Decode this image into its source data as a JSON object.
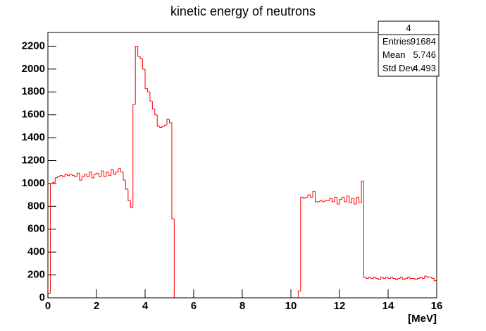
{
  "chart_data": {
    "type": "histogram",
    "title": "kinetic energy of neutrons",
    "x_label": "[MeV]",
    "color": "#ff0000",
    "bins": [
      0,
      0.1,
      0.2,
      0.3,
      0.4,
      0.5,
      0.6,
      0.7,
      0.8,
      0.9,
      1,
      1.1,
      1.2,
      1.3,
      1.4,
      1.5,
      1.6,
      1.7,
      1.8,
      1.9,
      2,
      2.1,
      2.2,
      2.3,
      2.4,
      2.5,
      2.6,
      2.7,
      2.8,
      2.9,
      3,
      3.1,
      3.2,
      3.3,
      3.4,
      3.5,
      3.6,
      3.7,
      3.8,
      3.9,
      4,
      4.1,
      4.2,
      4.3,
      4.4,
      4.5,
      4.6,
      4.7,
      4.8,
      4.9,
      5,
      5.1,
      5.2,
      5.3,
      5.4,
      5.5,
      5.6,
      5.7,
      5.8,
      5.9,
      6,
      6.1,
      6.2,
      6.3,
      6.4,
      6.5,
      6.6,
      6.7,
      6.8,
      6.9,
      7,
      7.1,
      7.2,
      7.3,
      7.4,
      7.5,
      7.6,
      7.7,
      7.8,
      7.9,
      8,
      8.1,
      8.2,
      8.3,
      8.4,
      8.5,
      8.6,
      8.7,
      8.8,
      8.9,
      9,
      9.1,
      9.2,
      9.3,
      9.4,
      9.5,
      9.6,
      9.7,
      9.8,
      9.9,
      10,
      10.1,
      10.2,
      10.3,
      10.4,
      10.5,
      10.6,
      10.7,
      10.8,
      10.9,
      11,
      11.1,
      11.2,
      11.3,
      11.4,
      11.5,
      11.6,
      11.7,
      11.8,
      11.9,
      12,
      12.1,
      12.2,
      12.3,
      12.4,
      12.5,
      12.6,
      12.7,
      12.8,
      12.9,
      13,
      13.1,
      13.2,
      13.3,
      13.4,
      13.5,
      13.6,
      13.7,
      13.8,
      13.9,
      14,
      14.1,
      14.2,
      14.3,
      14.4,
      14.5,
      14.6,
      14.7,
      14.8,
      14.9,
      15,
      15.1,
      15.2,
      15.3,
      15.4,
      15.5,
      15.6,
      15.7,
      15.8,
      15.9,
      16
    ],
    "values": [
      40,
      1000,
      1010,
      1050,
      1060,
      1070,
      1060,
      1080,
      1070,
      1080,
      1070,
      1060,
      1090,
      1030,
      1060,
      1080,
      1060,
      1100,
      1050,
      1080,
      1090,
      1060,
      1110,
      1060,
      1100,
      1070,
      1120,
      1080,
      1100,
      1130,
      1100,
      1030,
      950,
      850,
      790,
      1690,
      2200,
      2110,
      2090,
      2000,
      1830,
      1800,
      1720,
      1650,
      1600,
      1500,
      1490,
      1500,
      1510,
      1560,
      1530,
      690,
      0,
      0,
      0,
      0,
      0,
      0,
      0,
      0,
      0,
      0,
      0,
      0,
      0,
      0,
      0,
      0,
      0,
      0,
      0,
      0,
      0,
      0,
      0,
      0,
      0,
      0,
      0,
      0,
      0,
      0,
      0,
      0,
      0,
      0,
      0,
      0,
      0,
      0,
      0,
      0,
      0,
      0,
      0,
      0,
      0,
      0,
      0,
      0,
      0,
      0,
      0,
      60,
      880,
      870,
      880,
      900,
      880,
      930,
      840,
      840,
      850,
      840,
      850,
      850,
      870,
      840,
      880,
      820,
      860,
      880,
      840,
      890,
      830,
      870,
      820,
      880,
      830,
      1020,
      180,
      170,
      180,
      170,
      180,
      170,
      160,
      180,
      170,
      180,
      170,
      180,
      170,
      160,
      170,
      180,
      160,
      170,
      180,
      170,
      170,
      160,
      170,
      180,
      170,
      190,
      180,
      180,
      170,
      150
    ],
    "xlim": [
      0,
      16
    ],
    "xticks": [
      0,
      2,
      4,
      6,
      8,
      10,
      12,
      14,
      16
    ],
    "ylim": [
      0,
      2320
    ],
    "yticks": [
      0,
      200,
      400,
      600,
      800,
      1000,
      1200,
      1400,
      1600,
      1800,
      2000,
      2200
    ],
    "stats": {
      "title": "4",
      "rows": [
        [
          "Entries",
          91684
        ],
        [
          "Mean",
          5.746
        ],
        [
          "Std Dev",
          4.493
        ]
      ]
    }
  }
}
